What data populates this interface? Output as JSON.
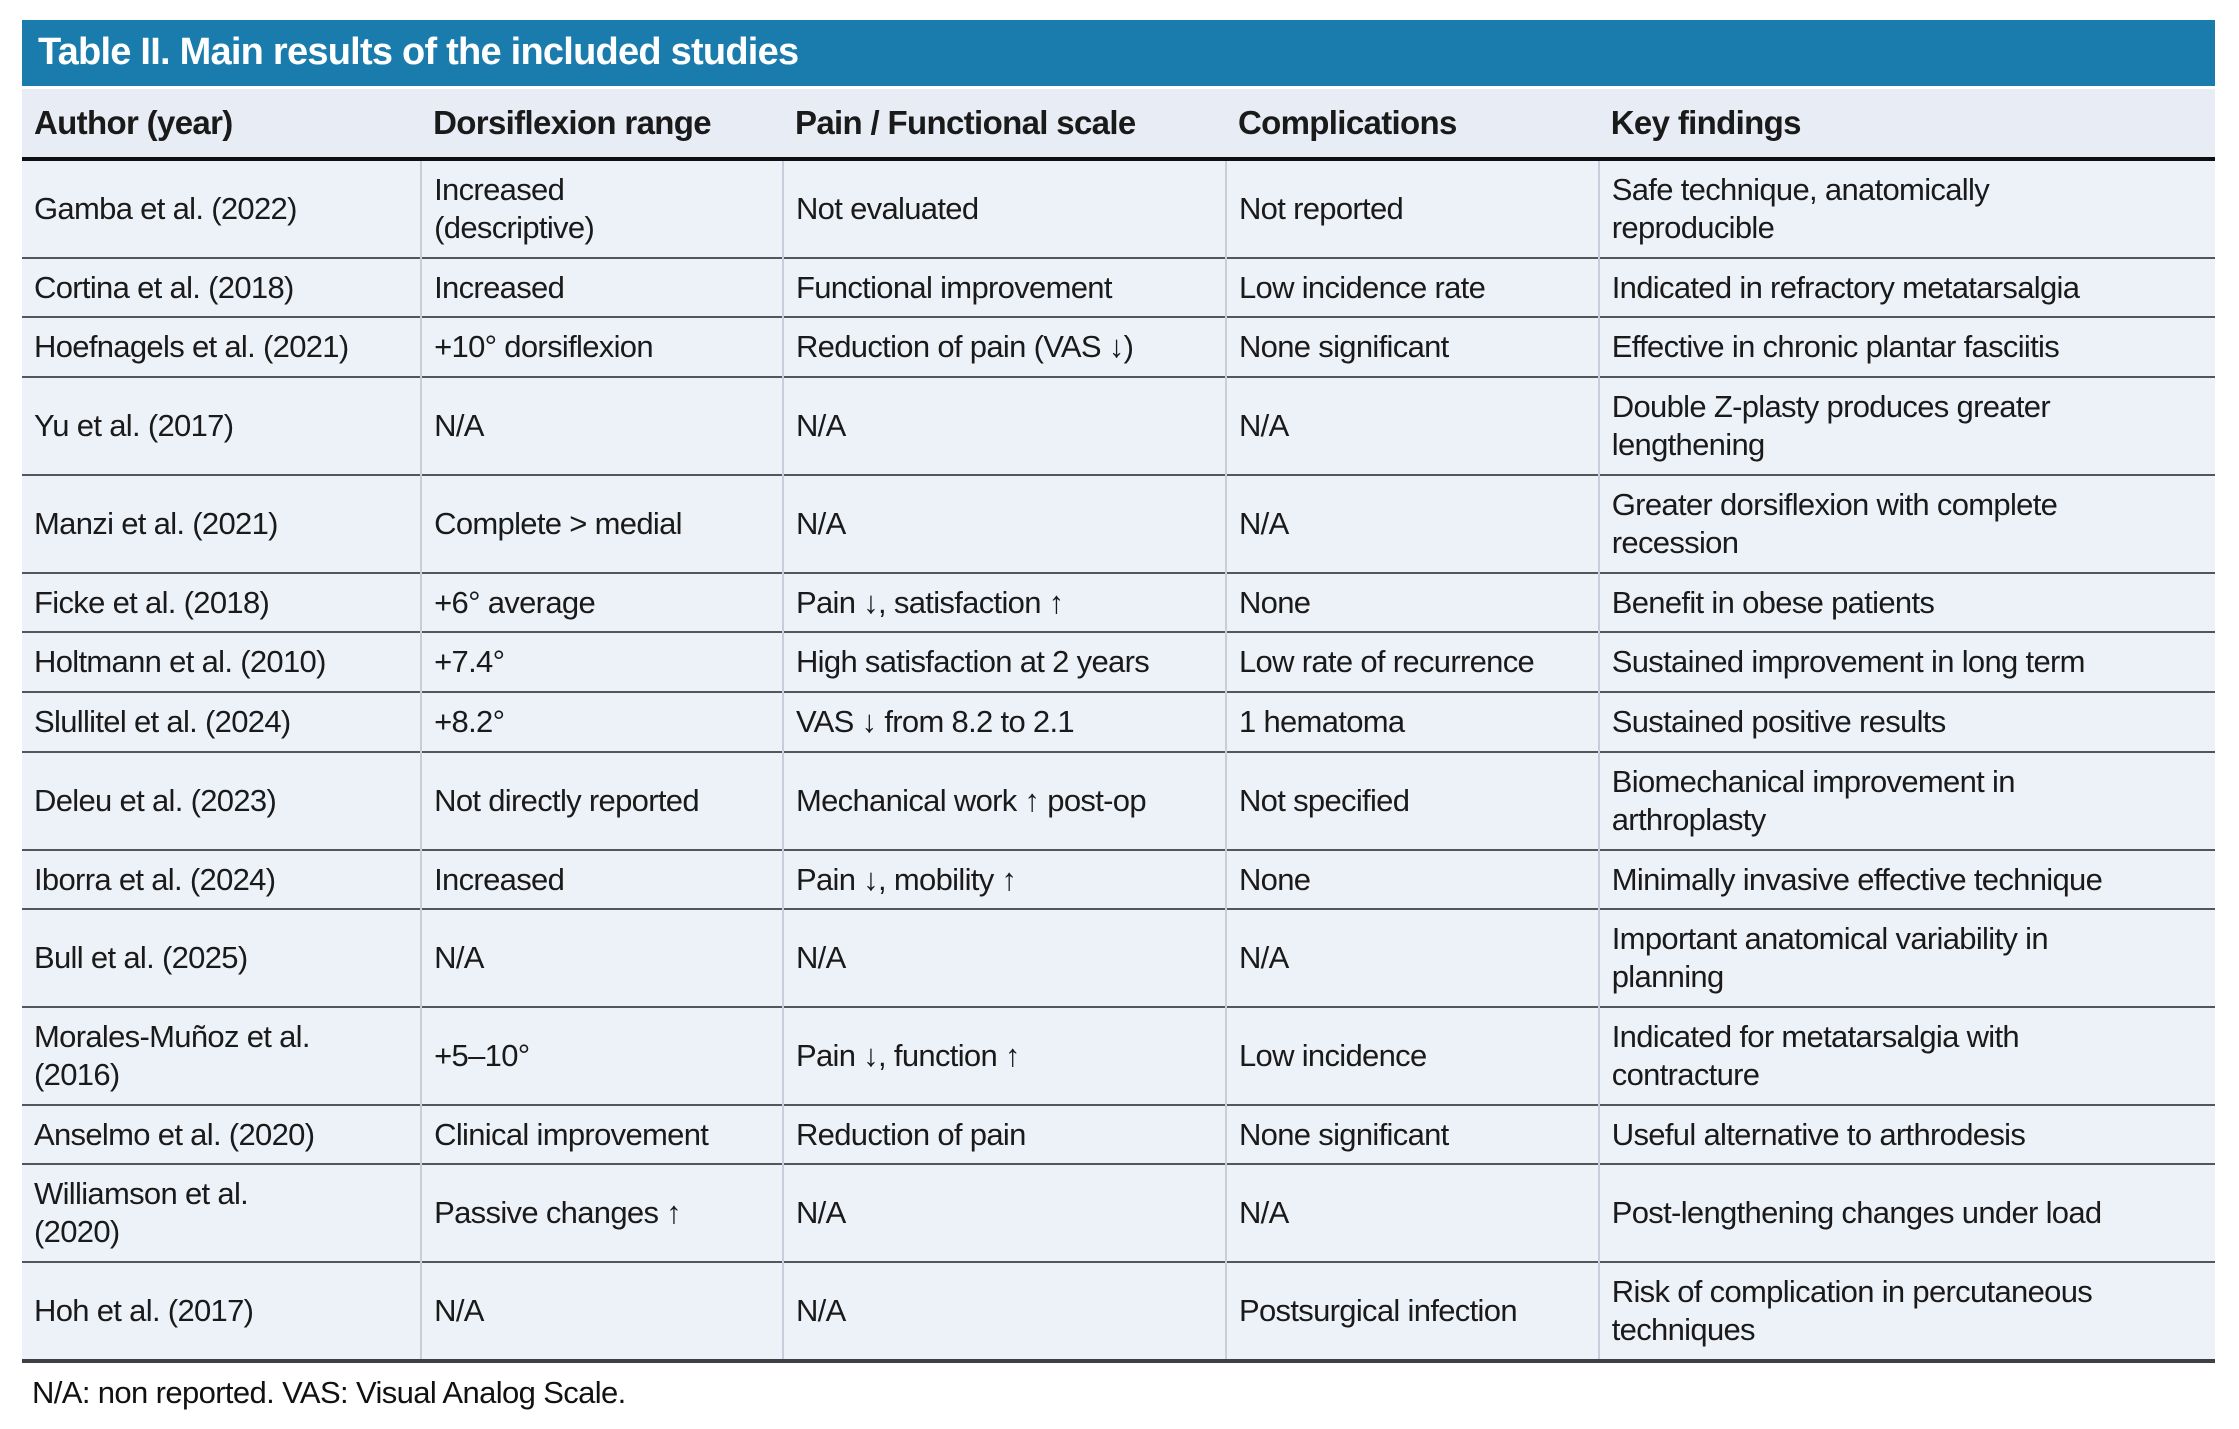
{
  "table": {
    "title": "Table II. Main results of the included studies",
    "columns": [
      "Author (year)",
      "Dorsiflexion range",
      "Pain / Functional scale",
      "Complications",
      "Key findings"
    ],
    "rows": [
      [
        "Gamba et al. (2022)",
        "Increased\n(descriptive)",
        "Not evaluated",
        "Not reported",
        "Safe technique, anatomically\nreproducible"
      ],
      [
        "Cortina et al. (2018)",
        "Increased",
        "Functional improvement",
        "Low incidence rate",
        "Indicated in refractory metatarsalgia"
      ],
      [
        "Hoefnagels et al. (2021)",
        "+10° dorsiflexion",
        "Reduction of pain (VAS ↓)",
        "None significant",
        "Effective in chronic plantar fasciitis"
      ],
      [
        "Yu et al. (2017)",
        "N/A",
        "N/A",
        "N/A",
        "Double Z-plasty produces greater\nlengthening"
      ],
      [
        "Manzi et al. (2021)",
        "Complete > medial",
        "N/A",
        "N/A",
        "Greater dorsiflexion with complete\nrecession"
      ],
      [
        "Ficke et al. (2018)",
        "+6° average",
        "Pain ↓, satisfaction ↑",
        "None",
        "Benefit in obese patients"
      ],
      [
        "Holtmann et al. (2010)",
        "+7.4°",
        "High satisfaction at 2 years",
        "Low rate of recurrence",
        "Sustained improvement in long term"
      ],
      [
        "Slullitel et al. (2024)",
        "+8.2°",
        "VAS ↓ from 8.2 to 2.1",
        "1 hematoma",
        "Sustained positive results"
      ],
      [
        "Deleu et al. (2023)",
        "Not directly reported",
        "Mechanical work ↑ post-op",
        "Not specified",
        "Biomechanical improvement in\narthroplasty"
      ],
      [
        "Iborra et al. (2024)",
        "Increased",
        "Pain ↓, mobility ↑",
        "None",
        "Minimally invasive effective technique"
      ],
      [
        "Bull et al. (2025)",
        "N/A",
        "N/A",
        "N/A",
        "Important anatomical variability in\nplanning"
      ],
      [
        "Morales-Muñoz et al.\n(2016)",
        "+5–10°",
        "Pain ↓, function ↑",
        "Low incidence",
        "Indicated for metatarsalgia with\ncontracture"
      ],
      [
        "Anselmo et al. (2020)",
        "Clinical improvement",
        "Reduction of pain",
        "None significant",
        "Useful alternative to arthrodesis"
      ],
      [
        "Williamson et al.\n(2020)",
        "Passive changes ↑",
        "N/A",
        "N/A",
        "Post-lengthening changes under load"
      ],
      [
        "Hoh et al. (2017)",
        "N/A",
        "N/A",
        "Postsurgical infection",
        "Risk of complication in percutaneous\ntechniques"
      ]
    ],
    "footnote": "N/A: non reported. VAS: Visual Analog Scale.",
    "colors": {
      "title_bar": "#1a7cad",
      "header_row_bg": "#e8ecf4",
      "body_row_bg": "#edf1f8",
      "row_separator": "#53565c",
      "header_rule": "#0d0f12"
    }
  }
}
